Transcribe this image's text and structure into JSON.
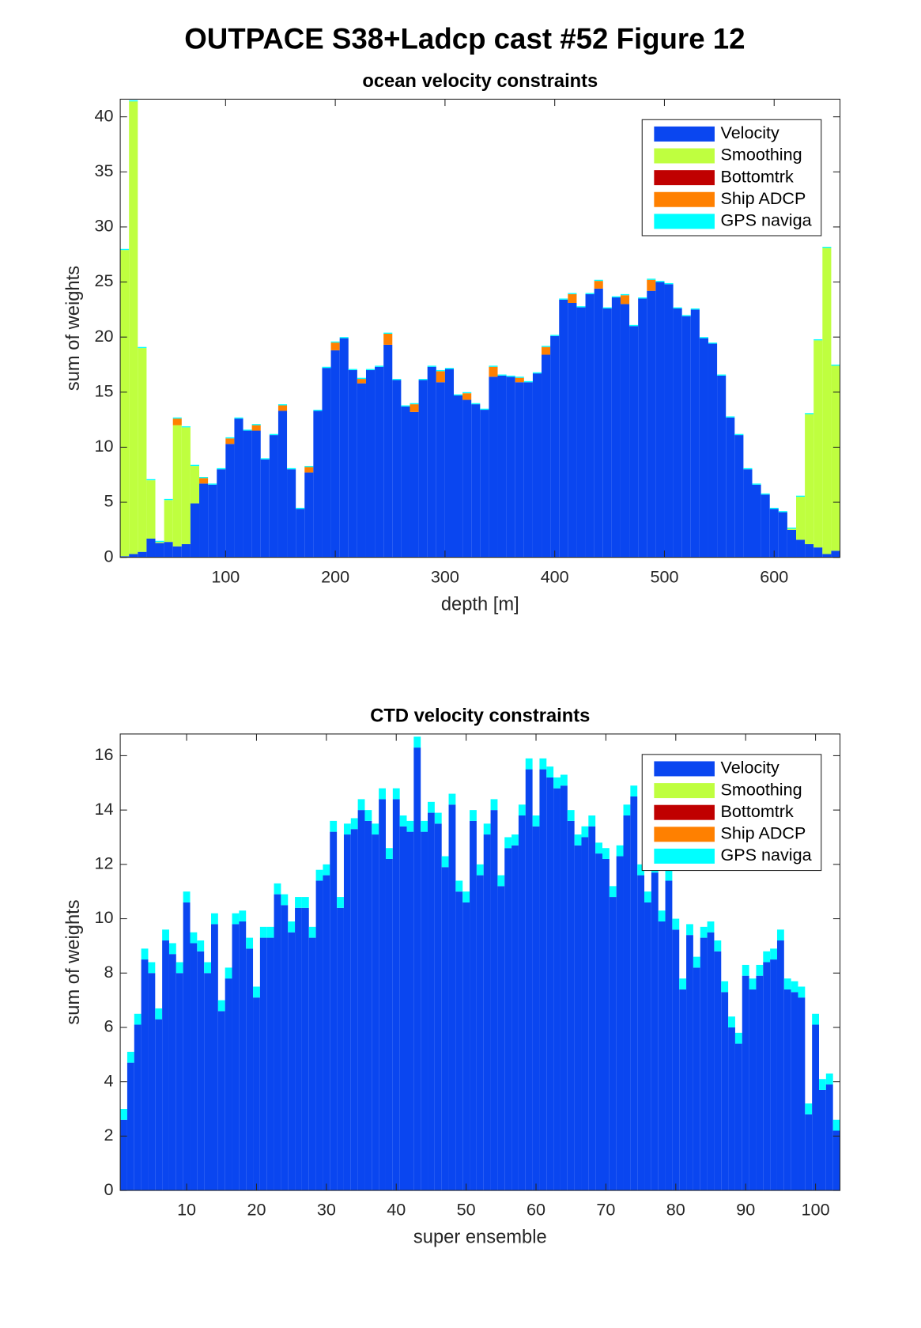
{
  "figure_title": "OUTPACE S38+Ladcp cast #52  Figure 12",
  "chart_data": [
    {
      "type": "bar",
      "stacked": true,
      "title": "ocean velocity constraints",
      "xlabel": "depth [m]",
      "ylabel": "sum of weights",
      "x": [
        8,
        16,
        24,
        32,
        40,
        48,
        56,
        64,
        72,
        80,
        88,
        96,
        104,
        112,
        120,
        128,
        136,
        144,
        152,
        160,
        168,
        176,
        184,
        192,
        200,
        208,
        216,
        224,
        232,
        240,
        248,
        256,
        264,
        272,
        280,
        288,
        296,
        304,
        312,
        320,
        328,
        336,
        344,
        352,
        360,
        368,
        376,
        384,
        392,
        400,
        408,
        416,
        424,
        432,
        440,
        448,
        456,
        464,
        472,
        480,
        488,
        496,
        504,
        512,
        520,
        528,
        536,
        544,
        552,
        560,
        568,
        576,
        584,
        592,
        600,
        608,
        616,
        624,
        632,
        640,
        648,
        656
      ],
      "xlim": [
        4,
        660
      ],
      "xticks": [
        100,
        200,
        300,
        400,
        500,
        600
      ],
      "ylim": [
        0,
        41.6
      ],
      "yticks": [
        0,
        5,
        10,
        15,
        20,
        25,
        30,
        35,
        40
      ],
      "legend": "northeast",
      "grid": false,
      "series": [
        {
          "name": "Velocity",
          "color": "#0a46f0",
          "values": [
            0.1,
            0.3,
            0.5,
            1.7,
            1.3,
            1.4,
            1.0,
            1.2,
            4.9,
            6.7,
            6.6,
            8.0,
            10.3,
            12.6,
            11.5,
            11.5,
            8.9,
            11.1,
            13.3,
            8.0,
            4.4,
            7.7,
            13.3,
            17.2,
            18.8,
            19.9,
            17.0,
            15.8,
            17.0,
            17.3,
            19.3,
            16.1,
            13.7,
            13.2,
            16.1,
            17.3,
            15.9,
            17.1,
            14.7,
            14.3,
            13.9,
            13.4,
            16.4,
            16.5,
            16.4,
            15.9,
            15.9,
            16.7,
            18.4,
            20.1,
            23.4,
            23.1,
            22.7,
            23.9,
            24.4,
            22.6,
            23.6,
            23.0,
            21.0,
            23.5,
            24.2,
            25.0,
            24.8,
            22.6,
            21.9,
            22.5,
            19.9,
            19.4,
            16.5,
            12.7,
            11.1,
            8.0,
            6.6,
            5.7,
            4.4,
            4.1,
            2.5,
            1.6,
            1.2,
            0.9,
            0.3,
            0.6
          ]
        },
        {
          "name": "Smoothing",
          "color": "#bfff3f",
          "values": [
            27.8,
            41.1,
            18.5,
            5.3,
            0.1,
            3.8,
            11.0,
            10.6,
            3.4,
            0,
            0,
            0,
            0,
            0,
            0,
            0,
            0,
            0,
            0,
            0,
            0,
            0,
            0,
            0,
            0,
            0,
            0,
            0,
            0,
            0,
            0,
            0,
            0,
            0,
            0,
            0,
            0,
            0,
            0,
            0,
            0,
            0,
            0,
            0,
            0,
            0,
            0,
            0,
            0,
            0,
            0,
            0,
            0,
            0,
            0,
            0,
            0,
            0,
            0,
            0,
            0,
            0,
            0,
            0,
            0,
            0,
            0,
            0,
            0,
            0,
            0,
            0,
            0,
            0,
            0,
            0,
            0.1,
            3.9,
            11.8,
            18.8,
            27.8,
            16.8
          ]
        },
        {
          "name": "Bottomtrk",
          "color": "#c00000",
          "values": [
            0,
            0,
            0,
            0,
            0,
            0,
            0,
            0,
            0,
            0,
            0,
            0,
            0,
            0,
            0,
            0,
            0,
            0,
            0,
            0,
            0,
            0,
            0,
            0,
            0,
            0,
            0,
            0,
            0,
            0,
            0,
            0,
            0,
            0,
            0,
            0,
            0,
            0,
            0,
            0,
            0,
            0,
            0,
            0,
            0,
            0,
            0,
            0,
            0,
            0,
            0,
            0,
            0,
            0,
            0,
            0,
            0,
            0,
            0,
            0,
            0,
            0,
            0,
            0,
            0,
            0,
            0,
            0,
            0,
            0,
            0,
            0,
            0,
            0,
            0,
            0,
            0,
            0,
            0,
            0,
            0,
            0
          ]
        },
        {
          "name": "Ship ADCP",
          "color": "#ff8000",
          "values": [
            0,
            0,
            0,
            0,
            0,
            0,
            0.6,
            0,
            0,
            0.5,
            0,
            0,
            0.5,
            0,
            0,
            0.5,
            0,
            0,
            0.5,
            0,
            0,
            0.5,
            0,
            0,
            0.7,
            0,
            0,
            0.4,
            0,
            0,
            1.0,
            0,
            0,
            0.7,
            0,
            0,
            1.0,
            0,
            0,
            0.6,
            0,
            0,
            0.9,
            0,
            0,
            0.4,
            0,
            0,
            0.7,
            0,
            0,
            0.8,
            0,
            0,
            0.7,
            0,
            0,
            0.8,
            0,
            0,
            1.0,
            0,
            0,
            0,
            0,
            0,
            0,
            0,
            0,
            0,
            0,
            0,
            0,
            0,
            0,
            0,
            0,
            0,
            0,
            0,
            0,
            0
          ]
        },
        {
          "name": "GPS naviga",
          "color": "#00ffff",
          "values": [
            0.1,
            0.1,
            0.1,
            0.1,
            0.1,
            0.1,
            0.1,
            0.1,
            0.1,
            0.1,
            0.1,
            0.1,
            0.1,
            0.1,
            0.1,
            0.1,
            0.1,
            0.1,
            0.1,
            0.1,
            0.1,
            0.1,
            0.1,
            0.1,
            0.1,
            0.1,
            0.1,
            0.1,
            0.1,
            0.1,
            0.1,
            0.1,
            0.1,
            0.1,
            0.1,
            0.1,
            0.1,
            0.1,
            0.1,
            0.1,
            0.1,
            0.1,
            0.1,
            0.1,
            0.1,
            0.1,
            0.1,
            0.1,
            0.1,
            0.1,
            0.1,
            0.1,
            0.1,
            0.1,
            0.1,
            0.1,
            0.1,
            0.1,
            0.1,
            0.1,
            0.1,
            0.1,
            0.1,
            0.1,
            0.1,
            0.1,
            0.1,
            0.1,
            0.1,
            0.1,
            0.1,
            0.1,
            0.1,
            0.1,
            0.1,
            0.1,
            0.1,
            0.1,
            0.1,
            0.1,
            0.1,
            0.1
          ]
        }
      ]
    },
    {
      "type": "bar",
      "stacked": true,
      "title": "CTD velocity constraints",
      "xlabel": "super ensemble",
      "ylabel": "sum of weights",
      "x": [
        1,
        2,
        3,
        4,
        5,
        6,
        7,
        8,
        9,
        10,
        11,
        12,
        13,
        14,
        15,
        16,
        17,
        18,
        19,
        20,
        21,
        22,
        23,
        24,
        25,
        26,
        27,
        28,
        29,
        30,
        31,
        32,
        33,
        34,
        35,
        36,
        37,
        38,
        39,
        40,
        41,
        42,
        43,
        44,
        45,
        46,
        47,
        48,
        49,
        50,
        51,
        52,
        53,
        54,
        55,
        56,
        57,
        58,
        59,
        60,
        61,
        62,
        63,
        64,
        65,
        66,
        67,
        68,
        69,
        70,
        71,
        72,
        73,
        74,
        75,
        76,
        77,
        78,
        79,
        80,
        81,
        82,
        83,
        84,
        85,
        86,
        87,
        88,
        89,
        90,
        91,
        92,
        93,
        94,
        95,
        96,
        97,
        98,
        99,
        100,
        101,
        102,
        103
      ],
      "xlim": [
        0.5,
        103.5
      ],
      "xticks": [
        10,
        20,
        30,
        40,
        50,
        60,
        70,
        80,
        90,
        100
      ],
      "ylim": [
        0,
        16.8
      ],
      "yticks": [
        0,
        2,
        4,
        6,
        8,
        10,
        12,
        14,
        16
      ],
      "legend": "northeast",
      "grid": false,
      "series": [
        {
          "name": "Velocity",
          "color": "#0a46f0",
          "values": [
            2.6,
            4.7,
            6.1,
            8.5,
            8.0,
            6.3,
            9.2,
            8.7,
            8.0,
            10.6,
            9.1,
            8.8,
            8.0,
            9.8,
            6.6,
            7.8,
            9.8,
            9.9,
            8.9,
            7.1,
            9.3,
            9.3,
            10.9,
            10.5,
            9.5,
            10.4,
            10.4,
            9.3,
            11.4,
            11.6,
            13.2,
            10.4,
            13.1,
            13.3,
            14.0,
            13.6,
            13.1,
            14.4,
            12.2,
            14.4,
            13.4,
            13.2,
            16.3,
            13.2,
            13.9,
            13.5,
            11.9,
            14.2,
            11.0,
            10.6,
            13.6,
            11.6,
            13.1,
            14.0,
            11.2,
            12.6,
            12.7,
            13.8,
            15.5,
            13.4,
            15.5,
            15.2,
            14.8,
            14.9,
            13.6,
            12.7,
            13.0,
            13.4,
            12.4,
            12.2,
            10.8,
            12.3,
            13.8,
            14.5,
            11.6,
            10.6,
            11.7,
            9.9,
            11.4,
            9.6,
            7.4,
            9.4,
            8.2,
            9.3,
            9.5,
            8.8,
            7.3,
            6.0,
            5.4,
            7.9,
            7.4,
            7.9,
            8.4,
            8.5,
            9.2,
            7.4,
            7.3,
            7.1,
            2.8,
            6.1,
            3.7,
            3.9,
            2.2
          ]
        },
        {
          "name": "Smoothing",
          "color": "#bfff3f",
          "values": [
            0,
            0,
            0,
            0,
            0,
            0,
            0,
            0,
            0,
            0,
            0,
            0,
            0,
            0,
            0,
            0,
            0,
            0,
            0,
            0,
            0,
            0,
            0,
            0,
            0,
            0,
            0,
            0,
            0,
            0,
            0,
            0,
            0,
            0,
            0,
            0,
            0,
            0,
            0,
            0,
            0,
            0,
            0,
            0,
            0,
            0,
            0,
            0,
            0,
            0,
            0,
            0,
            0,
            0,
            0,
            0,
            0,
            0,
            0,
            0,
            0,
            0,
            0,
            0,
            0,
            0,
            0,
            0,
            0,
            0,
            0,
            0,
            0,
            0,
            0,
            0,
            0,
            0,
            0,
            0,
            0,
            0,
            0,
            0,
            0,
            0,
            0,
            0,
            0,
            0,
            0,
            0,
            0,
            0,
            0,
            0,
            0,
            0,
            0,
            0,
            0,
            0,
            0
          ]
        },
        {
          "name": "Bottomtrk",
          "color": "#c00000",
          "values": [
            0,
            0,
            0,
            0,
            0,
            0,
            0,
            0,
            0,
            0,
            0,
            0,
            0,
            0,
            0,
            0,
            0,
            0,
            0,
            0,
            0,
            0,
            0,
            0,
            0,
            0,
            0,
            0,
            0,
            0,
            0,
            0,
            0,
            0,
            0,
            0,
            0,
            0,
            0,
            0,
            0,
            0,
            0,
            0,
            0,
            0,
            0,
            0,
            0,
            0,
            0,
            0,
            0,
            0,
            0,
            0,
            0,
            0,
            0,
            0,
            0,
            0,
            0,
            0,
            0,
            0,
            0,
            0,
            0,
            0,
            0,
            0,
            0,
            0,
            0,
            0,
            0,
            0,
            0,
            0,
            0,
            0,
            0,
            0,
            0,
            0,
            0,
            0,
            0,
            0,
            0,
            0,
            0,
            0,
            0,
            0,
            0,
            0,
            0,
            0,
            0,
            0,
            0
          ]
        },
        {
          "name": "Ship ADCP",
          "color": "#ff8000",
          "values": [
            0,
            0,
            0,
            0,
            0,
            0,
            0,
            0,
            0,
            0,
            0,
            0,
            0,
            0,
            0,
            0,
            0,
            0,
            0,
            0,
            0,
            0,
            0,
            0,
            0,
            0,
            0,
            0,
            0,
            0,
            0,
            0,
            0,
            0,
            0,
            0,
            0,
            0,
            0,
            0,
            0,
            0,
            0,
            0,
            0,
            0,
            0,
            0,
            0,
            0,
            0,
            0,
            0,
            0,
            0,
            0,
            0,
            0,
            0,
            0,
            0,
            0,
            0,
            0,
            0,
            0,
            0,
            0,
            0,
            0,
            0,
            0,
            0,
            0,
            0,
            0,
            0,
            0,
            0,
            0,
            0,
            0,
            0,
            0,
            0,
            0,
            0,
            0,
            0,
            0,
            0,
            0,
            0,
            0,
            0,
            0,
            0,
            0,
            0,
            0,
            0,
            0,
            0
          ]
        },
        {
          "name": "GPS naviga",
          "color": "#00ffff",
          "values": [
            0.4,
            0.4,
            0.4,
            0.4,
            0.4,
            0.4,
            0.4,
            0.4,
            0.4,
            0.4,
            0.4,
            0.4,
            0.4,
            0.4,
            0.4,
            0.4,
            0.4,
            0.4,
            0.4,
            0.4,
            0.4,
            0.4,
            0.4,
            0.4,
            0.4,
            0.4,
            0.4,
            0.4,
            0.4,
            0.4,
            0.4,
            0.4,
            0.4,
            0.4,
            0.4,
            0.4,
            0.4,
            0.4,
            0.4,
            0.4,
            0.4,
            0.4,
            0.4,
            0.4,
            0.4,
            0.4,
            0.4,
            0.4,
            0.4,
            0.4,
            0.4,
            0.4,
            0.4,
            0.4,
            0.4,
            0.4,
            0.4,
            0.4,
            0.4,
            0.4,
            0.4,
            0.4,
            0.4,
            0.4,
            0.4,
            0.4,
            0.4,
            0.4,
            0.4,
            0.4,
            0.4,
            0.4,
            0.4,
            0.4,
            0.4,
            0.4,
            0.4,
            0.4,
            0.4,
            0.4,
            0.4,
            0.4,
            0.4,
            0.4,
            0.4,
            0.4,
            0.4,
            0.4,
            0.4,
            0.4,
            0.4,
            0.4,
            0.4,
            0.4,
            0.4,
            0.4,
            0.4,
            0.4,
            0.4,
            0.4,
            0.4,
            0.4,
            0.4
          ]
        }
      ]
    }
  ]
}
